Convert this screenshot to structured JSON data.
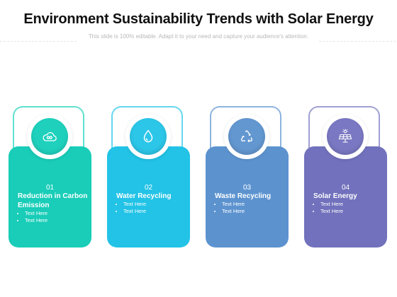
{
  "slide": {
    "title": "Environment Sustainability Trends with Solar Energy",
    "subtitle": "This slide is 100% editable. Adapt it to your need and capture your audience's attention."
  },
  "cards": [
    {
      "number": "01",
      "label": "Reduction in Carbon Emission",
      "bullets": [
        "Text Here",
        "Text Here"
      ],
      "icon": "co2-cloud-icon",
      "color": "#19cdb8",
      "disc_color": "#1fd1bd",
      "frame_color": "#5fe0cf"
    },
    {
      "number": "02",
      "label": "Water Recycling",
      "bullets": [
        "Text Here",
        "Text Here"
      ],
      "icon": "water-drop-icon",
      "color": "#22c3e6",
      "disc_color": "#2cc6e8",
      "frame_color": "#66d7ef"
    },
    {
      "number": "03",
      "label": "Waste Recycling",
      "bullets": [
        "Text Here",
        "Text Here"
      ],
      "icon": "recycle-icon",
      "color": "#5c93cf",
      "disc_color": "#6397d0",
      "frame_color": "#8db3de"
    },
    {
      "number": "04",
      "label": "Solar Energy",
      "bullets": [
        "Text Here",
        "Text Here"
      ],
      "icon": "solar-panel-icon",
      "color": "#7171bd",
      "disc_color": "#7a78c2",
      "frame_color": "#a09fd3"
    }
  ]
}
